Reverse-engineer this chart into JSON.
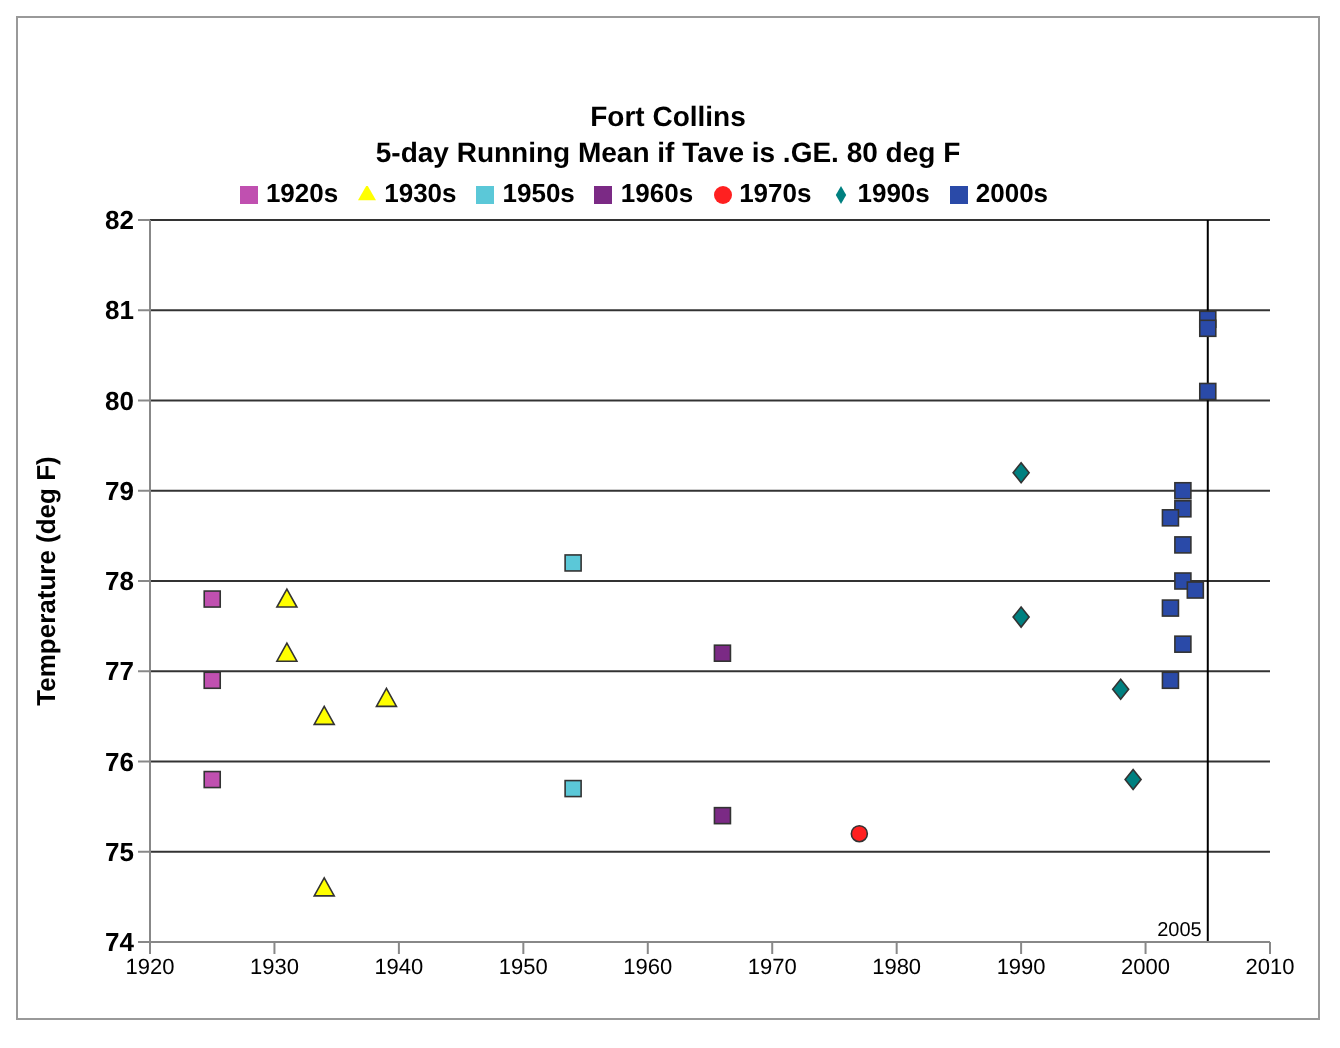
{
  "chart_data": {
    "type": "scatter",
    "title": "Fort Collins",
    "subtitle": "5-day Running Mean if Tave is .GE. 80 deg F",
    "ylabel": "Temperature (deg F)",
    "xlim": [
      1920,
      2010
    ],
    "xticks": [
      1920,
      1930,
      1940,
      1950,
      1960,
      1970,
      1980,
      1990,
      2000,
      2010
    ],
    "ylim": [
      74,
      82
    ],
    "yticks": [
      74,
      75,
      76,
      77,
      78,
      79,
      80,
      81,
      82
    ],
    "grid": "y",
    "legend": "top",
    "ref_lines": [
      {
        "axis": "x",
        "value": 2005,
        "label": "2005",
        "color": "#000000"
      }
    ],
    "series": [
      {
        "name": "1920s",
        "color": "#c050b0",
        "marker": "square",
        "x": [
          1925,
          1925,
          1925
        ],
        "values": [
          77.8,
          76.9,
          75.8
        ]
      },
      {
        "name": "1930s",
        "color": "#ffff00",
        "marker": "triangle",
        "x": [
          1931,
          1931,
          1934,
          1939,
          1934
        ],
        "values": [
          77.8,
          77.2,
          76.5,
          76.7,
          74.6
        ]
      },
      {
        "name": "1950s",
        "color": "#5bc8d8",
        "marker": "square",
        "x": [
          1954,
          1954
        ],
        "values": [
          78.2,
          75.7
        ]
      },
      {
        "name": "1960s",
        "color": "#7b2a85",
        "marker": "square",
        "x": [
          1966,
          1966
        ],
        "values": [
          77.2,
          75.4
        ]
      },
      {
        "name": "1970s",
        "color": "#ff2020",
        "marker": "circle",
        "x": [
          1977
        ],
        "values": [
          75.2
        ]
      },
      {
        "name": "1990s",
        "color": "#008080",
        "marker": "diamond",
        "x": [
          1990,
          1990,
          1998,
          1999
        ],
        "values": [
          79.2,
          77.6,
          76.8,
          75.8
        ]
      },
      {
        "name": "2000s",
        "color": "#2a4aa8",
        "marker": "square",
        "x": [
          2005,
          2005,
          2005,
          2003,
          2003,
          2002,
          2003,
          2003,
          2004,
          2002,
          2003,
          2002
        ],
        "values": [
          80.9,
          80.8,
          80.1,
          79.0,
          78.8,
          78.7,
          78.4,
          78.0,
          77.9,
          77.7,
          77.3,
          76.9
        ]
      }
    ]
  }
}
